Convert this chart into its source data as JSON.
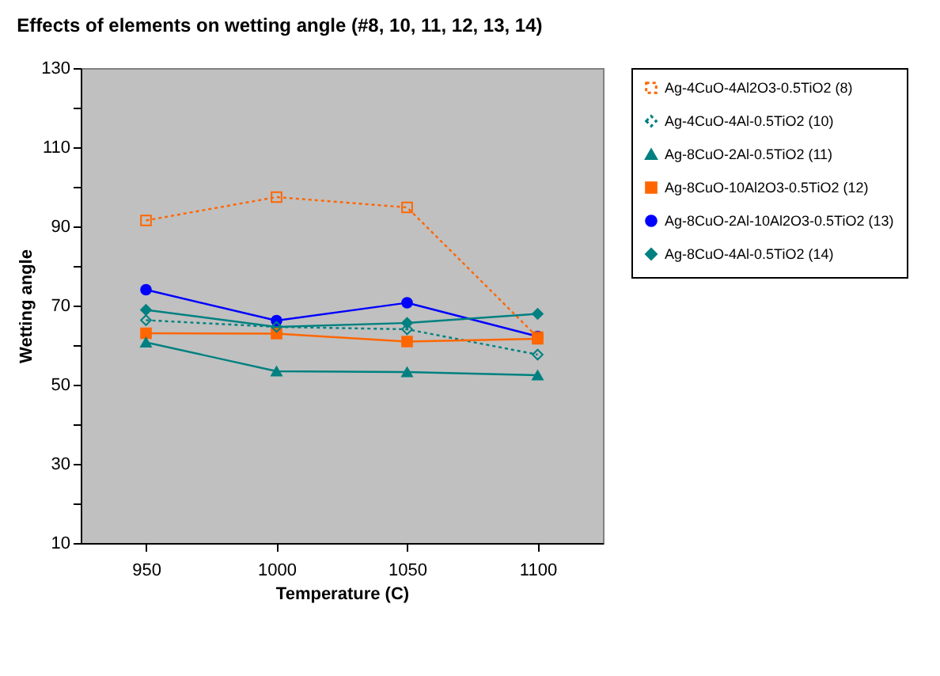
{
  "chart_data": {
    "type": "line",
    "title": "Effects of elements on wetting angle (#8, 10, 11, 12, 13, 14)",
    "xlabel": "Temperature (C)",
    "ylabel": "Wetting angle",
    "categories": [
      "950",
      "1000",
      "1050",
      "1100"
    ],
    "series": [
      {
        "name": "Ag-4CuO-4Al2O3-0.5TiO2 (8)",
        "color": "#ff6600",
        "marker": "square",
        "line_style": "dotted",
        "values": [
          91.5,
          97.4,
          94.8,
          62
        ]
      },
      {
        "name": "Ag-4CuO-4Al-0.5TiO2 (10)",
        "color": "#008080",
        "marker": "diamond",
        "line_style": "dotted",
        "values": [
          66.3,
          64.6,
          64,
          57.6
        ]
      },
      {
        "name": "Ag-8CuO-2Al-0.5TiO2 (11)",
        "color": "#008080",
        "marker": "triangle",
        "line_style": "solid",
        "values": [
          60.7,
          53.4,
          53.2,
          52.4
        ]
      },
      {
        "name": "Ag-8CuO-10Al2O3-0.5TiO2 (12)",
        "color": "#ff6600",
        "marker": "square",
        "line_style": "solid",
        "values": [
          63,
          62.9,
          60.9,
          61.6
        ]
      },
      {
        "name": "Ag-8CuO-2Al-10Al2O3-0.5TiO2 (13)",
        "color": "#0000ff",
        "marker": "circle",
        "line_style": "solid",
        "values": [
          74,
          66.2,
          70.7,
          62.2
        ]
      },
      {
        "name": "Ag-8CuO-4Al-0.5TiO2 (14)",
        "color": "#008080",
        "marker": "diamond",
        "line_style": "solid",
        "values": [
          68.9,
          64.6,
          65.6,
          67.9
        ]
      }
    ],
    "ylim": [
      10,
      130
    ],
    "yticks": [
      10,
      {
        "value": 20,
        "label": null
      },
      30,
      {
        "value": 40,
        "label": null
      },
      50,
      {
        "value": 60,
        "label": null
      },
      70,
      {
        "value": 80,
        "label": null
      },
      90,
      {
        "value": 100,
        "label": null
      },
      110,
      {
        "value": 120,
        "label": null
      },
      130
    ],
    "grid": false,
    "legend": "right"
  }
}
